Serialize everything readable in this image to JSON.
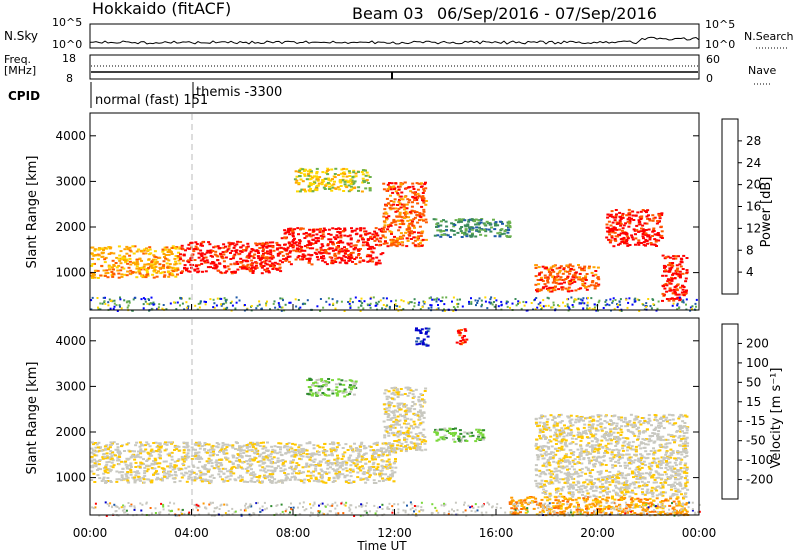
{
  "header": {
    "station": "Hokkaido (fitACF)",
    "beam": "Beam 03",
    "date_range": "06/Sep/2016 - 07/Sep/2016"
  },
  "strips": {
    "nsky_label": "N.Sky",
    "nsky_ticks": [
      "10^5",
      "10^0"
    ],
    "nsky_right_ticks": [
      "10^5",
      "10^0"
    ],
    "nsearch_label": "N.Search",
    "freq_label_line1": "Freq.",
    "freq_label_line2": "[MHz]",
    "freq_ticks": [
      "18",
      "8"
    ],
    "nave_label": "Nave",
    "nave_ticks": [
      "60",
      "0"
    ],
    "cpid_label": "CPID",
    "cpid_segments": [
      {
        "label": "normal (fast) 151",
        "start_hour": 0
      },
      {
        "label": "themis -3300",
        "start_hour": 4.1
      }
    ]
  },
  "colors": {
    "power": [
      "#0000ff",
      "#1e5aa8",
      "#3c8c5a",
      "#6ab04c",
      "#ffd700",
      "#ffa500",
      "#ff5a00",
      "#ff0000"
    ],
    "velocity": [
      "#ff0000",
      "#ff6a00",
      "#ff9a00",
      "#ffc800",
      "#c8c8c0",
      "#c8c8c0",
      "#7ad83a",
      "#2e8b2e",
      "#1e5aa8",
      "#0000cc"
    ]
  },
  "chart_data": [
    {
      "type": "heatmap",
      "quantity": "Power",
      "ylabel": "Slant Range [km]",
      "xlabel": "Time UT",
      "xlim_hours": [
        0,
        24
      ],
      "ylim_km": [
        180,
        4500
      ],
      "x_ticks": [
        "00:00",
        "04:00",
        "08:00",
        "12:00",
        "16:00",
        "20:00",
        "00:00"
      ],
      "y_ticks": [
        1000,
        2000,
        3000,
        4000
      ],
      "colorbar_label": "Power [dB]",
      "colorbar_ticks": [
        "28",
        "24",
        "20",
        "16",
        "12",
        "8",
        "4"
      ],
      "colorbar_range": [
        0,
        32
      ],
      "regions": [
        {
          "t0": 0.0,
          "t1": 3.5,
          "r0": 900,
          "r1": 1600,
          "level": 5
        },
        {
          "t0": 3.5,
          "t1": 7.5,
          "r0": 1000,
          "r1": 1700,
          "level": 7
        },
        {
          "t0": 7.5,
          "t1": 11.5,
          "r0": 1200,
          "r1": 2000,
          "level": 7
        },
        {
          "t0": 11.5,
          "t1": 13.2,
          "r0": 1600,
          "r1": 3000,
          "level": 6
        },
        {
          "t0": 13.5,
          "t1": 16.5,
          "r0": 1800,
          "r1": 2200,
          "level": 2
        },
        {
          "t0": 17.5,
          "t1": 20.0,
          "r0": 600,
          "r1": 1200,
          "level": 6
        },
        {
          "t0": 20.3,
          "t1": 22.5,
          "r0": 1600,
          "r1": 2400,
          "level": 7
        },
        {
          "t0": 22.5,
          "t1": 23.5,
          "r0": 400,
          "r1": 1400,
          "level": 7
        },
        {
          "t0": 8.0,
          "t1": 11.0,
          "r0": 2800,
          "r1": 3300,
          "level": 4
        }
      ]
    },
    {
      "type": "heatmap",
      "quantity": "Velocity",
      "ylabel": "Slant Range [km]",
      "xlabel": "Time UT",
      "xlim_hours": [
        0,
        24
      ],
      "ylim_km": [
        180,
        4500
      ],
      "x_ticks": [
        "00:00",
        "04:00",
        "08:00",
        "12:00",
        "16:00",
        "20:00",
        "00:00"
      ],
      "y_ticks": [
        1000,
        2000,
        3000,
        4000
      ],
      "colorbar_label": "Velocity [m s⁻¹]",
      "colorbar_ticks": [
        "200",
        "100",
        "50",
        "15",
        "-15",
        "-50",
        "-100",
        "-200"
      ],
      "colorbar_range": [
        -250,
        250
      ],
      "regions": [
        {
          "t0": 0.0,
          "t1": 12.0,
          "r0": 900,
          "r1": 1800,
          "level": 4
        },
        {
          "t0": 11.5,
          "t1": 13.2,
          "r0": 1600,
          "r1": 3000,
          "level": 4
        },
        {
          "t0": 13.5,
          "t1": 15.5,
          "r0": 1800,
          "r1": 2100,
          "level": 6
        },
        {
          "t0": 8.5,
          "t1": 10.5,
          "r0": 2800,
          "r1": 3200,
          "level": 6
        },
        {
          "t0": 16.5,
          "t1": 23.5,
          "r0": 200,
          "r1": 600,
          "level": 2
        },
        {
          "t0": 17.5,
          "t1": 23.5,
          "r0": 600,
          "r1": 2400,
          "level": 4
        },
        {
          "t0": 14.4,
          "t1": 14.8,
          "r0": 3900,
          "r1": 4300,
          "level": 0
        },
        {
          "t0": 12.8,
          "t1": 13.3,
          "r0": 3900,
          "r1": 4300,
          "level": 9
        }
      ]
    }
  ]
}
